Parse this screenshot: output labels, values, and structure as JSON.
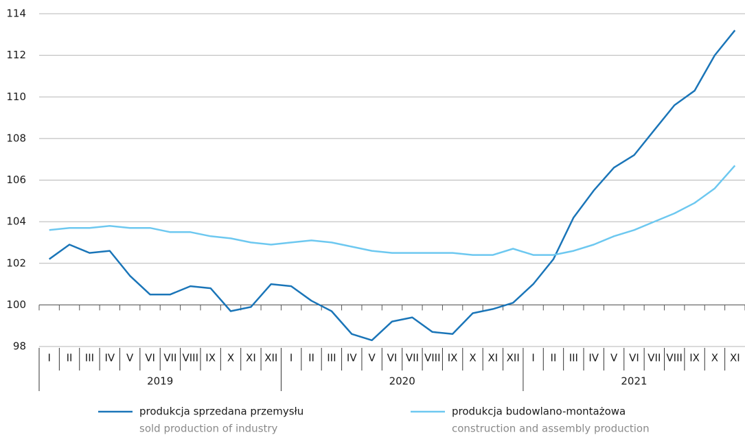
{
  "chart_data": {
    "type": "line",
    "categories": [
      "I",
      "II",
      "III",
      "IV",
      "V",
      "VI",
      "VII",
      "VIII",
      "IX",
      "X",
      "XI",
      "XII",
      "I",
      "II",
      "III",
      "IV",
      "V",
      "VI",
      "VII",
      "VIII",
      "IX",
      "X",
      "XI",
      "XII",
      "I",
      "II",
      "III",
      "IV",
      "V",
      "VI",
      "VII",
      "VIII",
      "IX",
      "X",
      "XI"
    ],
    "groups": [
      "2019",
      "2020",
      "2021"
    ],
    "series": [
      {
        "name": "produkcja sprzedana przemysłu",
        "name_en": "sold production of industry",
        "color": "#1a75b8",
        "values": [
          102.2,
          102.9,
          102.5,
          102.6,
          101.4,
          100.5,
          100.5,
          100.9,
          100.8,
          99.7,
          99.9,
          101.0,
          100.9,
          100.2,
          99.7,
          98.6,
          98.3,
          99.2,
          99.4,
          98.7,
          98.6,
          99.6,
          99.8,
          100.1,
          101.0,
          102.2,
          104.2,
          105.5,
          106.6,
          107.2,
          108.4,
          109.6,
          110.3,
          112.0,
          113.2
        ]
      },
      {
        "name": "produkcja budowlano-montażowa",
        "name_en": "construction and assembly production",
        "color": "#6dc8f0",
        "values": [
          103.6,
          103.7,
          103.7,
          103.8,
          103.7,
          103.7,
          103.5,
          103.5,
          103.3,
          103.2,
          103.0,
          102.9,
          103.0,
          103.1,
          103.0,
          102.8,
          102.6,
          102.5,
          102.5,
          102.5,
          102.5,
          102.4,
          102.4,
          102.7,
          102.4,
          102.4,
          102.6,
          102.9,
          103.3,
          103.6,
          104.0,
          104.4,
          104.9,
          105.6,
          106.7
        ]
      }
    ],
    "ylim": [
      98,
      114
    ],
    "yticks": [
      98,
      100,
      102,
      104,
      106,
      108,
      110,
      112,
      114
    ],
    "grid": true,
    "baseline": 100
  }
}
